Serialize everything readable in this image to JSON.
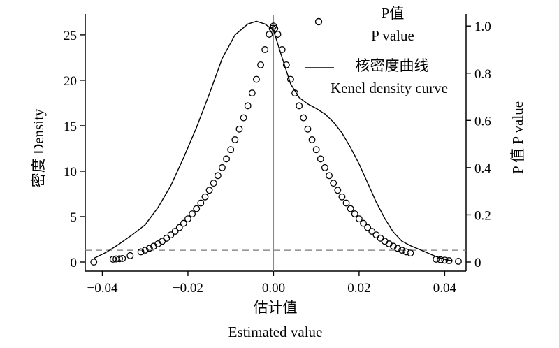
{
  "chart_data": {
    "type": "line",
    "x_axis": {
      "label_cn": "估计值",
      "label_en": "Estimated value",
      "range": [
        -0.044,
        0.045
      ],
      "ticks": [
        -0.04,
        -0.02,
        0.0,
        0.02,
        0.04
      ],
      "tick_labels": [
        "−0.04",
        "−0.02",
        "0.00",
        "0.02",
        "0.04"
      ]
    },
    "y_left": {
      "label": "密度 Density",
      "range": [
        -1,
        27.3
      ],
      "ticks": [
        0,
        5,
        10,
        15,
        20,
        25
      ],
      "tick_labels": [
        "0",
        "5",
        "10",
        "15",
        "20",
        "25"
      ]
    },
    "y_right": {
      "label": "P 值 P value",
      "range": [
        -0.0385,
        1.0509
      ],
      "ticks": [
        0,
        0.2,
        0.4,
        0.6,
        0.8,
        1.0
      ],
      "tick_labels": [
        "0",
        "0.2",
        "0.4",
        "0.6",
        "0.8",
        "1.0"
      ]
    },
    "reference_lines": {
      "vertical_x": 0.0,
      "horizontal_p": 0.05
    },
    "legend": {
      "placement": "top-right",
      "entries": [
        {
          "symbol": "circle",
          "label_cn": "P值",
          "label_en": "P value"
        },
        {
          "symbol": "line",
          "label_cn": "核密度曲线",
          "label_en": "Kenel density curve"
        }
      ]
    },
    "series": [
      {
        "name": "Kenel density curve",
        "kind": "line",
        "axis": "left",
        "x": [
          -0.042,
          -0.039,
          -0.036,
          -0.033,
          -0.03,
          -0.027,
          -0.024,
          -0.021,
          -0.018,
          -0.015,
          -0.012,
          -0.009,
          -0.006,
          -0.004,
          -0.002,
          0.0,
          0.002,
          0.004,
          0.006,
          0.008,
          0.01,
          0.012,
          0.014,
          0.016,
          0.018,
          0.02,
          0.022,
          0.024,
          0.026,
          0.028,
          0.03,
          0.032,
          0.034,
          0.036,
          0.038,
          0.04,
          0.042
        ],
        "y": [
          0.4,
          1.1,
          2.0,
          3.0,
          4.1,
          6.0,
          8.4,
          11.5,
          14.8,
          18.5,
          22.4,
          25.0,
          26.2,
          26.5,
          26.2,
          25.5,
          22.5,
          19.6,
          18.1,
          17.4,
          16.9,
          16.3,
          15.4,
          14.2,
          12.6,
          10.8,
          8.7,
          6.6,
          4.8,
          3.3,
          2.3,
          1.8,
          1.4,
          1.0,
          0.6,
          0.3,
          0.1
        ]
      },
      {
        "name": "P value",
        "kind": "scatter",
        "axis": "right",
        "marker": "open-circle",
        "x": [
          -0.042,
          -0.0375,
          -0.0368,
          -0.036,
          -0.0353,
          -0.0335,
          -0.031,
          -0.03,
          -0.029,
          -0.028,
          -0.027,
          -0.026,
          -0.025,
          -0.024,
          -0.023,
          -0.022,
          -0.021,
          -0.02,
          -0.019,
          -0.018,
          -0.017,
          -0.016,
          -0.015,
          -0.014,
          -0.013,
          -0.012,
          -0.011,
          -0.01,
          -0.009,
          -0.008,
          -0.007,
          -0.006,
          -0.005,
          -0.004,
          -0.003,
          -0.002,
          -0.001,
          -0.0003,
          0.0,
          0.0003,
          0.001,
          0.002,
          0.003,
          0.004,
          0.005,
          0.006,
          0.007,
          0.008,
          0.009,
          0.01,
          0.011,
          0.012,
          0.013,
          0.014,
          0.015,
          0.016,
          0.017,
          0.018,
          0.019,
          0.02,
          0.021,
          0.022,
          0.023,
          0.024,
          0.025,
          0.026,
          0.027,
          0.028,
          0.029,
          0.03,
          0.031,
          0.032,
          0.038,
          0.039,
          0.04,
          0.041,
          0.0432
        ],
        "y": [
          0.0,
          0.012,
          0.013,
          0.014,
          0.015,
          0.027,
          0.043,
          0.05,
          0.058,
          0.067,
          0.077,
          0.088,
          0.101,
          0.115,
          0.13,
          0.146,
          0.164,
          0.183,
          0.204,
          0.226,
          0.25,
          0.276,
          0.304,
          0.334,
          0.366,
          0.4,
          0.437,
          0.476,
          0.518,
          0.563,
          0.611,
          0.662,
          0.716,
          0.774,
          0.835,
          0.9,
          0.965,
          0.99,
          1.0,
          0.99,
          0.965,
          0.9,
          0.835,
          0.774,
          0.716,
          0.662,
          0.611,
          0.563,
          0.518,
          0.476,
          0.437,
          0.4,
          0.366,
          0.334,
          0.304,
          0.276,
          0.25,
          0.226,
          0.204,
          0.183,
          0.164,
          0.146,
          0.13,
          0.115,
          0.101,
          0.088,
          0.077,
          0.067,
          0.058,
          0.05,
          0.043,
          0.038,
          0.012,
          0.01,
          0.008,
          0.006,
          0.003
        ]
      }
    ]
  }
}
